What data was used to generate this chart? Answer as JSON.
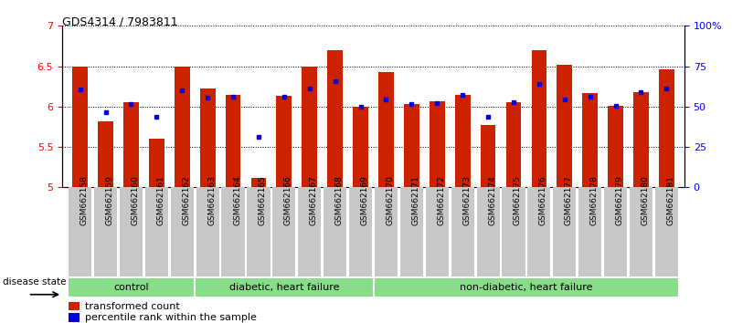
{
  "title": "GDS4314 / 7983811",
  "samples": [
    "GSM662158",
    "GSM662159",
    "GSM662160",
    "GSM662161",
    "GSM662162",
    "GSM662163",
    "GSM662164",
    "GSM662165",
    "GSM662166",
    "GSM662167",
    "GSM662168",
    "GSM662169",
    "GSM662170",
    "GSM662171",
    "GSM662172",
    "GSM662173",
    "GSM662174",
    "GSM662175",
    "GSM662176",
    "GSM662177",
    "GSM662178",
    "GSM662179",
    "GSM662180",
    "GSM662181"
  ],
  "red_values": [
    6.5,
    5.82,
    6.05,
    5.6,
    6.5,
    6.22,
    6.15,
    5.12,
    6.13,
    6.5,
    6.7,
    6.0,
    6.43,
    6.03,
    6.07,
    6.15,
    5.77,
    6.06,
    6.7,
    6.52,
    6.17,
    6.01,
    6.18,
    6.46
  ],
  "blue_values": [
    6.21,
    5.93,
    6.03,
    5.87,
    6.2,
    6.11,
    6.12,
    5.63,
    6.12,
    6.22,
    6.32,
    6.0,
    6.09,
    6.03,
    6.04,
    6.14,
    5.87,
    6.06,
    6.28,
    6.09,
    6.12,
    6.01,
    6.18,
    6.22
  ],
  "groups": [
    {
      "label": "control",
      "start": 0,
      "end": 5
    },
    {
      "label": "diabetic, heart failure",
      "start": 5,
      "end": 12
    },
    {
      "label": "non-diabetic, heart failure",
      "start": 12,
      "end": 24
    }
  ],
  "group_color": "#88DD88",
  "group_edge_color": "#ffffff",
  "ylim_left": [
    5.0,
    7.0
  ],
  "yticks_left": [
    5.0,
    5.5,
    6.0,
    6.5,
    7.0
  ],
  "ytick_labels_left": [
    "5",
    "5.5",
    "6",
    "6.5",
    "7"
  ],
  "yticks_right": [
    0,
    25,
    50,
    75,
    100
  ],
  "ytick_labels_right": [
    "0",
    "25",
    "50",
    "75",
    "100%"
  ],
  "grid_lines": [
    5.5,
    6.0,
    6.5,
    7.0
  ],
  "bar_color": "#CC2200",
  "dot_color": "#0000DD",
  "baseline": 5.0,
  "bar_width": 0.6,
  "tick_label_fontsize": 6.5,
  "title_fontsize": 9,
  "group_fontsize": 8,
  "legend_fontsize": 8
}
